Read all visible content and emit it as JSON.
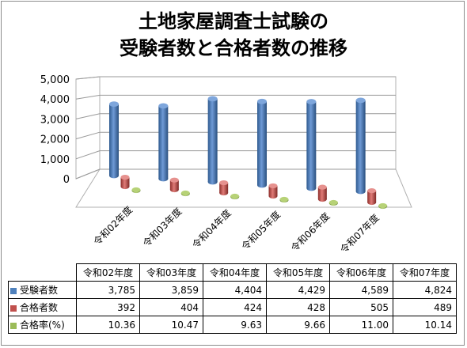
{
  "title_line1": "土地家屋調査士試験の",
  "title_line2": "受験者数と合格者数の推移",
  "colors": {
    "examinees": "#4f81bd",
    "passers": "#c0504d",
    "rate": "#9bbb59"
  },
  "chart_data": {
    "type": "bar",
    "title": "土地家屋調査士試験の受験者数と合格者数の推移",
    "categories": [
      "令和02年度",
      "令和03年度",
      "令和04年度",
      "令和05年度",
      "令和06年度",
      "令和07年度"
    ],
    "ylim": [
      0,
      5000
    ],
    "yticks": [
      "5,000",
      "4,000",
      "3,000",
      "2,000",
      "1,000",
      "0"
    ],
    "yvalues": [
      5000,
      4000,
      3000,
      2000,
      1000,
      0
    ],
    "grid": true,
    "series": [
      {
        "name": "受験者数",
        "values": [
          3785,
          3859,
          4404,
          4429,
          4589,
          4824
        ],
        "display": [
          "3,785",
          "3,859",
          "4,404",
          "4,429",
          "4,589",
          "4,824"
        ]
      },
      {
        "name": "合格者数",
        "values": [
          392,
          404,
          424,
          428,
          505,
          489
        ],
        "display": [
          "392",
          "404",
          "424",
          "428",
          "505",
          "489"
        ]
      },
      {
        "name": "合格率(%)",
        "values": [
          10.36,
          10.47,
          9.63,
          9.66,
          11.0,
          10.14
        ],
        "display": [
          "10.36",
          "10.47",
          "9.63",
          "9.66",
          "11.00",
          "10.14"
        ]
      }
    ]
  }
}
